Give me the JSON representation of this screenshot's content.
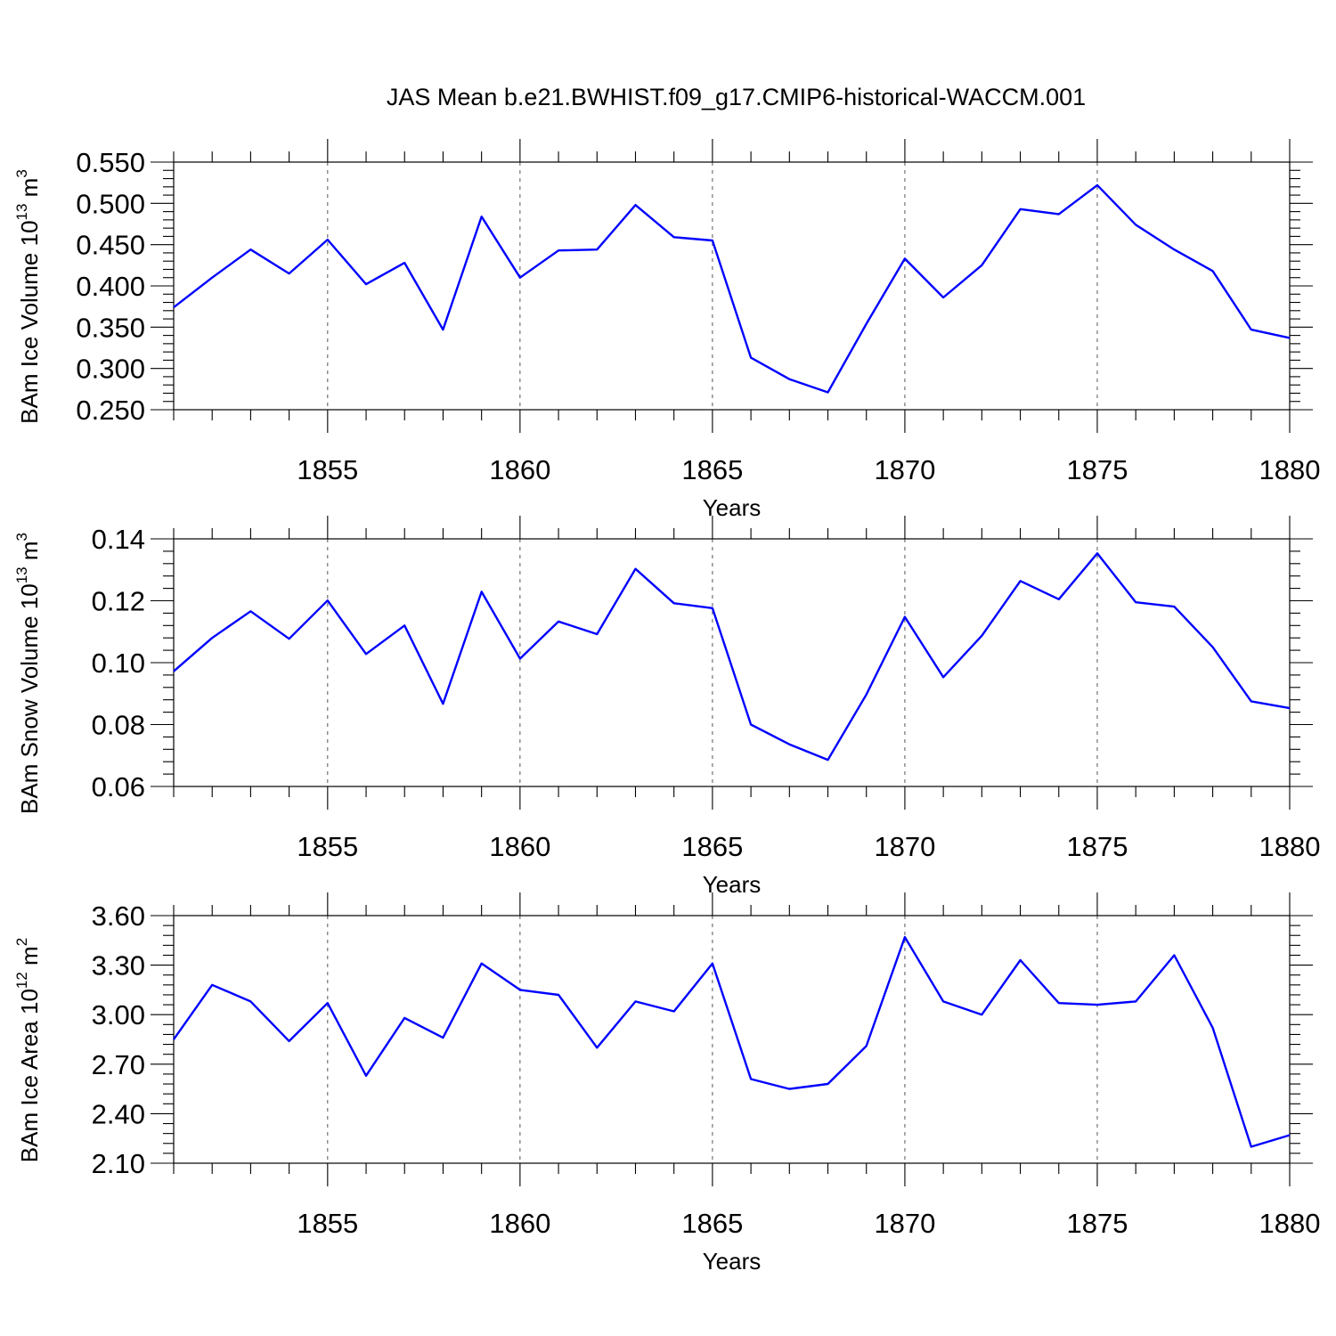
{
  "figure": {
    "title": "JAS Mean b.e21.BWHIST.f09_g17.CMIP6-historical-WACCM.001"
  },
  "chart_data": [
    {
      "type": "line",
      "title": "",
      "xlabel": "Years",
      "ylabel_main": "BAm Ice Volume 10",
      "ylabel_exp": "13",
      "ylabel_unit": " m",
      "ylabel_unit_exp": "3",
      "xlim": [
        1851,
        1880
      ],
      "ylim": [
        0.25,
        0.55
      ],
      "yticks": [
        0.25,
        0.3,
        0.35,
        0.4,
        0.45,
        0.5,
        0.55
      ],
      "ytick_labels": [
        "0.250",
        "0.300",
        "0.350",
        "0.400",
        "0.450",
        "0.500",
        "0.550"
      ],
      "xticks": [
        1855,
        1860,
        1865,
        1870,
        1875,
        1880
      ],
      "xtick_labels": [
        "1855",
        "1860",
        "1865",
        "1870",
        "1875",
        "1880"
      ],
      "grid": "dashed vertical at major x ticks",
      "series": [
        {
          "name": "BAm Ice Volume",
          "color": "#0000ff",
          "x": [
            1851,
            1852,
            1853,
            1854,
            1855,
            1856,
            1857,
            1858,
            1859,
            1860,
            1861,
            1862,
            1863,
            1864,
            1865,
            1866,
            1867,
            1868,
            1869,
            1870,
            1871,
            1872,
            1873,
            1874,
            1875,
            1876,
            1877,
            1878,
            1879,
            1880
          ],
          "values": [
            0.374,
            0.41,
            0.444,
            0.415,
            0.456,
            0.402,
            0.428,
            0.347,
            0.484,
            0.41,
            0.443,
            0.444,
            0.498,
            0.459,
            0.455,
            0.313,
            0.287,
            0.271,
            0.354,
            0.433,
            0.386,
            0.425,
            0.493,
            0.487,
            0.522,
            0.474,
            0.444,
            0.418,
            0.347,
            0.337
          ]
        }
      ]
    },
    {
      "type": "line",
      "title": "",
      "xlabel": "Years",
      "ylabel_main": "BAm Snow Volume 10",
      "ylabel_exp": "13",
      "ylabel_unit": " m",
      "ylabel_unit_exp": "3",
      "xlim": [
        1851,
        1880
      ],
      "ylim": [
        0.06,
        0.14
      ],
      "yticks": [
        0.06,
        0.08,
        0.1,
        0.12,
        0.14
      ],
      "ytick_labels": [
        "0.06",
        "0.08",
        "0.10",
        "0.12",
        "0.14"
      ],
      "xticks": [
        1855,
        1860,
        1865,
        1870,
        1875,
        1880
      ],
      "xtick_labels": [
        "1855",
        "1860",
        "1865",
        "1870",
        "1875",
        "1880"
      ],
      "grid": "dashed vertical at major x ticks",
      "series": [
        {
          "name": "BAm Snow Volume",
          "color": "#0000ff",
          "x": [
            1851,
            1852,
            1853,
            1854,
            1855,
            1856,
            1857,
            1858,
            1859,
            1860,
            1861,
            1862,
            1863,
            1864,
            1865,
            1866,
            1867,
            1868,
            1869,
            1870,
            1871,
            1872,
            1873,
            1874,
            1875,
            1876,
            1877,
            1878,
            1879,
            1880
          ],
          "values": [
            0.0972,
            0.108,
            0.1166,
            0.1077,
            0.1201,
            0.1028,
            0.112,
            0.0867,
            0.1229,
            0.1013,
            0.1133,
            0.1092,
            0.1303,
            0.1192,
            0.1176,
            0.08,
            0.0736,
            0.0686,
            0.0897,
            0.1148,
            0.0953,
            0.1087,
            0.1264,
            0.1205,
            0.1353,
            0.1195,
            0.1181,
            0.105,
            0.0875,
            0.0853
          ]
        }
      ]
    },
    {
      "type": "line",
      "title": "",
      "xlabel": "Years",
      "ylabel_main": "BAm Ice Area 10",
      "ylabel_exp": "12",
      "ylabel_unit": " m",
      "ylabel_unit_exp": "2",
      "xlim": [
        1851,
        1880
      ],
      "ylim": [
        2.1,
        3.6
      ],
      "yticks": [
        2.1,
        2.4,
        2.7,
        3.0,
        3.3,
        3.6
      ],
      "ytick_labels": [
        "2.10",
        "2.40",
        "2.70",
        "3.00",
        "3.30",
        "3.60"
      ],
      "xticks": [
        1855,
        1860,
        1865,
        1870,
        1875,
        1880
      ],
      "xtick_labels": [
        "1855",
        "1860",
        "1865",
        "1870",
        "1875",
        "1880"
      ],
      "grid": "dashed vertical at major x ticks",
      "series": [
        {
          "name": "BAm Ice Area",
          "color": "#0000ff",
          "x": [
            1851,
            1852,
            1853,
            1854,
            1855,
            1856,
            1857,
            1858,
            1859,
            1860,
            1861,
            1862,
            1863,
            1864,
            1865,
            1866,
            1867,
            1868,
            1869,
            1870,
            1871,
            1872,
            1873,
            1874,
            1875,
            1876,
            1877,
            1878,
            1879,
            1880
          ],
          "values": [
            2.85,
            3.18,
            3.08,
            2.84,
            3.07,
            2.63,
            2.98,
            2.86,
            3.31,
            3.15,
            3.12,
            2.8,
            3.08,
            3.02,
            3.31,
            2.61,
            2.55,
            2.58,
            2.81,
            3.47,
            3.08,
            3.0,
            3.33,
            3.07,
            3.06,
            3.08,
            3.36,
            2.92,
            2.2,
            2.27
          ]
        }
      ]
    }
  ]
}
